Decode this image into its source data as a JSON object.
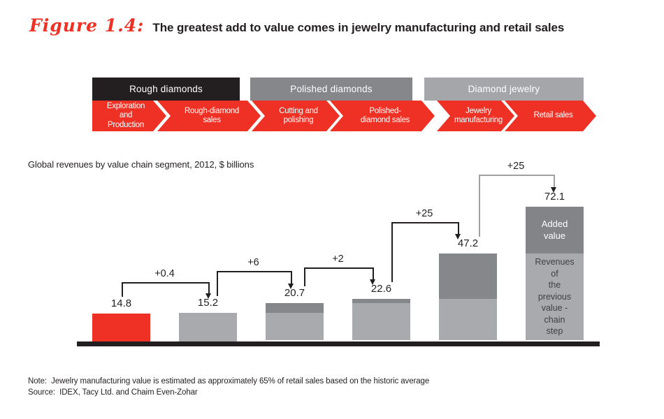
{
  "title": {
    "figure_label": "Figure 1.4:",
    "text": "The greatest add to value comes in jewelry manufacturing and retail sales"
  },
  "flow": {
    "step_color": "#ee3124",
    "headers": [
      {
        "label": "Rough diamonds",
        "color": "#231f20"
      },
      {
        "label": "Polished diamonds",
        "color": "#85878a"
      },
      {
        "label": "Diamond jewelry",
        "color": "#a4a6a9"
      }
    ],
    "steps": [
      {
        "label": "Exploration\nand\nProduction"
      },
      {
        "label": "Rough-diamond\nsales"
      },
      {
        "label": "Cutting and\npolishing"
      },
      {
        "label": "Polished-\ndiamond sales"
      },
      {
        "label": "Jewelry\nmanufacturing"
      },
      {
        "label": "Retail sales"
      }
    ]
  },
  "chart_data": {
    "type": "bar",
    "title": "Global revenues by value chain segment, 2012, $ billions",
    "categories": [
      "Exploration and Production",
      "Rough-diamond sales",
      "Cutting and polishing",
      "Polished-diamond sales",
      "Jewelry manufacturing",
      "Retail sales"
    ],
    "values": [
      14.8,
      15.2,
      20.7,
      22.6,
      47.2,
      72.1
    ],
    "ylim": [
      0,
      80
    ],
    "grid": false,
    "baseline_color": "#231f20",
    "bars": [
      {
        "label": "14.8",
        "total": 14.8,
        "segments": [
          {
            "value": 14.8,
            "color": "#ee3124"
          }
        ]
      },
      {
        "label": "15.2",
        "total": 15.2,
        "segments": [
          {
            "value": 15.2,
            "color": "#a8aaad"
          }
        ]
      },
      {
        "label": "20.7",
        "total": 20.7,
        "segments": [
          {
            "value": 15.2,
            "color": "#a8aaad"
          },
          {
            "value": 5.5,
            "color": "#85878a"
          }
        ]
      },
      {
        "label": "22.6",
        "total": 22.6,
        "segments": [
          {
            "value": 20.7,
            "color": "#a8aaad"
          },
          {
            "value": 1.9,
            "color": "#85878a"
          }
        ]
      },
      {
        "label": "47.2",
        "total": 47.2,
        "segments": [
          {
            "value": 22.6,
            "color": "#a8aaad"
          },
          {
            "value": 24.6,
            "color": "#85878a"
          }
        ]
      },
      {
        "label": "72.1",
        "total": 72.1,
        "segments": [
          {
            "value": 47.2,
            "color": "#a8aaad",
            "text": "Revenues\nof\nthe\nprevious\nvalue -\nchain\nstep",
            "text_color": "#3f4042",
            "text_size": 12.5
          },
          {
            "value": 24.9,
            "color": "#828487",
            "text": "Added\nvalue",
            "text_color": "#ffffff",
            "text_size": 13
          }
        ]
      }
    ],
    "brackets": [
      {
        "label": "+0.4",
        "from": 0,
        "to": 1,
        "color": "#231f20"
      },
      {
        "label": "+6",
        "from": 1,
        "to": 2,
        "color": "#231f20"
      },
      {
        "label": "+2",
        "from": 2,
        "to": 3,
        "color": "#231f20"
      },
      {
        "label": "+25",
        "from": 3,
        "to": 4,
        "color": "#231f20"
      },
      {
        "label": "+25",
        "from": 4,
        "to": 5,
        "color": "#9ea0a3"
      }
    ]
  },
  "notes": {
    "note": "Note:  Jewelry manufacturing value is estimated as approximately 65% of retail sales based on the historic average",
    "source": "Source:  IDEX, Tacy Ltd. and Chaim Even-Zohar"
  }
}
